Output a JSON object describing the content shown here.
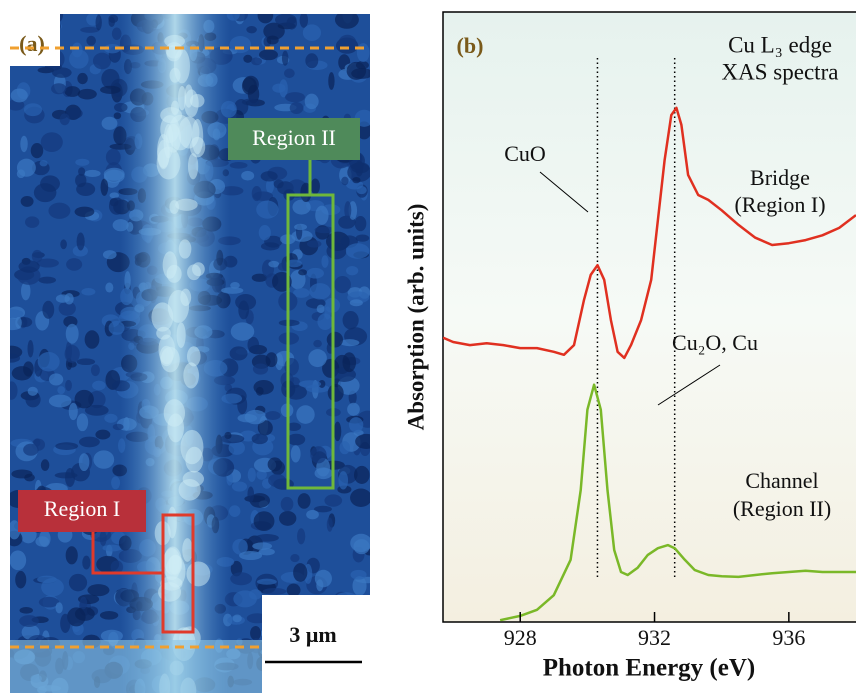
{
  "panel_a": {
    "label": "(a)",
    "regions": [
      {
        "label": "Region II"
      },
      {
        "label": "Region I"
      }
    ],
    "scale_bar": "3 μm"
  },
  "chart_data": {
    "type": "line",
    "label": "(b)",
    "title_lines": [
      "Cu L₃ edge",
      "XAS spectra"
    ],
    "xlabel": "Photon Energy (eV)",
    "ylabel": "Absorption (arb. units)",
    "xlim": [
      925.7,
      938.0
    ],
    "xticks": [
      928,
      932,
      936
    ],
    "ylim": [
      0,
      1
    ],
    "reference_lines": [
      930.3,
      932.6
    ],
    "annotations": [
      {
        "text": "CuO"
      },
      {
        "text": "Cu₂O, Cu"
      }
    ],
    "series": [
      {
        "name": "Bridge",
        "subname": "(Region I)",
        "color": "#e03020",
        "x": [
          925.7,
          926,
          926.5,
          927,
          927.5,
          928,
          928.5,
          929,
          929.3,
          929.6,
          929.9,
          930.1,
          930.3,
          930.5,
          930.7,
          930.9,
          931.1,
          931.3,
          931.6,
          931.9,
          932.1,
          932.3,
          932.5,
          932.65,
          932.8,
          933.0,
          933.3,
          933.6,
          934,
          934.5,
          935,
          935.5,
          936,
          936.5,
          937,
          937.5,
          938
        ],
        "values": [
          0.466,
          0.459,
          0.454,
          0.457,
          0.454,
          0.449,
          0.449,
          0.443,
          0.438,
          0.454,
          0.528,
          0.569,
          0.585,
          0.561,
          0.495,
          0.443,
          0.433,
          0.454,
          0.495,
          0.561,
          0.659,
          0.757,
          0.831,
          0.843,
          0.815,
          0.733,
          0.7,
          0.692,
          0.675,
          0.651,
          0.63,
          0.618,
          0.621,
          0.626,
          0.634,
          0.646,
          0.667
        ]
      },
      {
        "name": "Channel",
        "subname": "(Region II)",
        "color": "#7ab828",
        "x": [
          927.4,
          928,
          928.5,
          929,
          929.5,
          929.8,
          930.0,
          930.2,
          930.4,
          930.6,
          930.8,
          931.0,
          931.2,
          931.5,
          931.8,
          932.1,
          932.4,
          932.6,
          932.9,
          933.2,
          933.6,
          934,
          934.5,
          935,
          935.5,
          936,
          936.5,
          937,
          937.5,
          938
        ],
        "values": [
          0.003,
          0.01,
          0.02,
          0.044,
          0.102,
          0.216,
          0.348,
          0.389,
          0.348,
          0.216,
          0.118,
          0.082,
          0.077,
          0.089,
          0.11,
          0.121,
          0.126,
          0.121,
          0.102,
          0.085,
          0.077,
          0.075,
          0.074,
          0.077,
          0.08,
          0.082,
          0.084,
          0.082,
          0.082,
          0.082
        ]
      }
    ]
  }
}
